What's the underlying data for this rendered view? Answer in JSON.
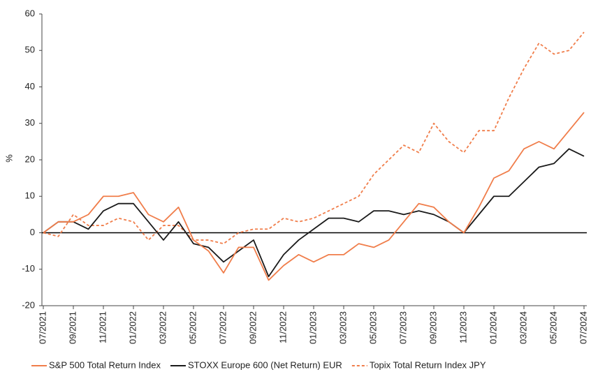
{
  "chart_data": {
    "type": "line",
    "y_label": "%",
    "categories": [
      "07/2021",
      null,
      "09/2021",
      null,
      "11/2021",
      null,
      "01/2022",
      null,
      "03/2022",
      null,
      "05/2022",
      null,
      "07/2022",
      null,
      "09/2022",
      null,
      "11/2022",
      null,
      "01/2023",
      null,
      "03/2023",
      null,
      "05/2023",
      null,
      "07/2023",
      null,
      "09/2023",
      null,
      "11/2023",
      null,
      "01/2024",
      null,
      "03/2024",
      null,
      "05/2024",
      null,
      "07/2024"
    ],
    "series": [
      {
        "name": "S&P 500 Total Return Index",
        "color": "#f07d4a",
        "style": "solid",
        "values": [
          0,
          3,
          3,
          5,
          10,
          10,
          11,
          5,
          3,
          7,
          -2,
          -5,
          -11,
          -4,
          -4,
          -13,
          -9,
          -6,
          -8,
          -6,
          -6,
          -3,
          -4,
          -2,
          3,
          8,
          7,
          3,
          0,
          7,
          15,
          17,
          23,
          25,
          23,
          28,
          33
        ]
      },
      {
        "name": "STOXX Europe 600 (Net Return) EUR",
        "color": "#1a1a1a",
        "style": "solid",
        "values": [
          0,
          3,
          3,
          1,
          6,
          8,
          8,
          3,
          -2,
          3,
          -3,
          -4,
          -8,
          -5,
          -2,
          -12,
          -6,
          -2,
          1,
          4,
          4,
          3,
          6,
          6,
          5,
          6,
          5,
          3,
          0,
          5,
          10,
          10,
          14,
          18,
          19,
          23,
          21
        ]
      },
      {
        "name": "Topix Total Return Index JPY",
        "color": "#f07d4a",
        "style": "dashed",
        "values": [
          0,
          -1,
          5,
          2,
          2,
          4,
          3,
          -2,
          2,
          2,
          -2,
          -2,
          -3,
          0,
          1,
          1,
          4,
          3,
          4,
          6,
          8,
          10,
          16,
          20,
          24,
          22,
          30,
          25,
          22,
          28,
          28,
          37,
          45,
          52,
          49,
          50,
          55
        ]
      }
    ],
    "ylim": [
      -20,
      60
    ],
    "yticks": [
      -20,
      -10,
      0,
      10,
      20,
      30,
      40,
      50,
      60
    ],
    "legend": "bottom"
  }
}
